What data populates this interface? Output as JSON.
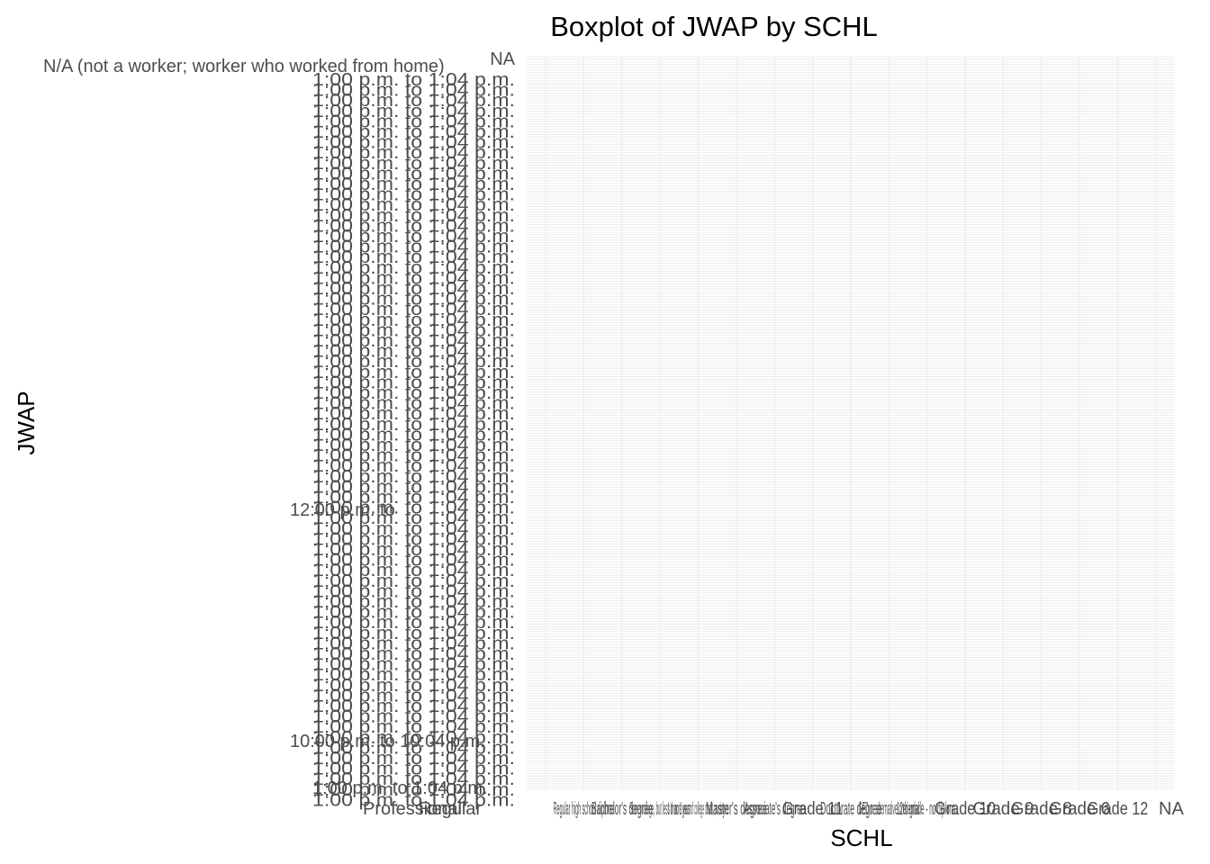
{
  "chart_data": {
    "type": "box",
    "title": "Boxplot of JWAP by SCHL",
    "xlabel": "SCHL",
    "ylabel": "JWAP",
    "x_categories": [
      "Professional degree beyond a bachelor's degree",
      "Regular high school diploma",
      "Bachelor's degree",
      "Some college, but less than 1 year",
      "1 or more years of college credit, no degree",
      "Master's degree",
      "Associate's degree",
      "Grade 11",
      "Doctorate degree",
      "GED or alternative credential",
      "12th grade - no diploma",
      "Grade 10",
      "Grade 9",
      "Grade 8",
      "Grade 6",
      "Grade 12",
      "NA"
    ],
    "x_labels_visible": [
      "Professional",
      "Regular",
      "Bachelor",
      "NA"
    ],
    "y_category_count": 285,
    "y_labels_visible": [
      "NA",
      "N/A (not a worker; worker who worked from home)",
      "12:00 p.m. to",
      "10:00 p.m. to 10:04 p.m.",
      "1:00 p.m. to 1:04 p.m."
    ],
    "series_values": [],
    "grid": true,
    "legend": "none"
  }
}
